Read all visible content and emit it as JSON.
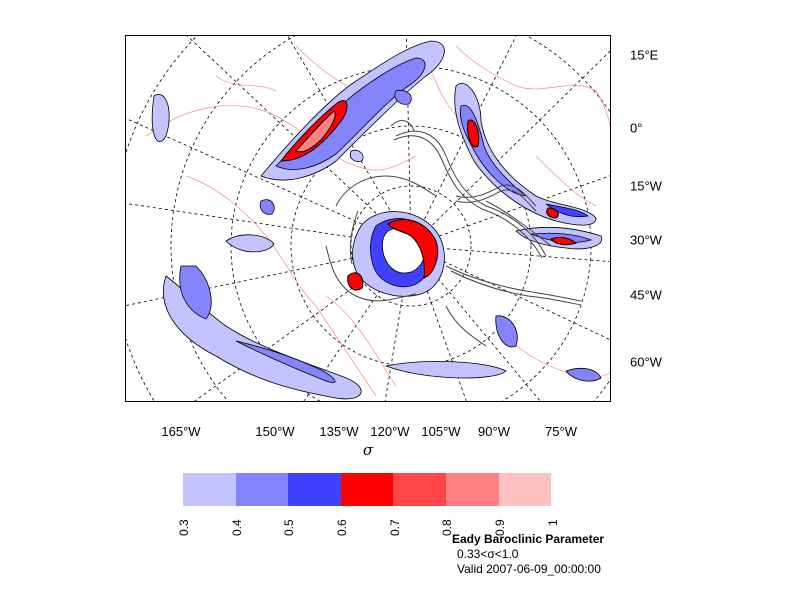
{
  "map": {
    "y_labels": [
      "15°E",
      "0°",
      "15°W",
      "30°W",
      "45°W",
      "60°W"
    ],
    "x_labels": [
      "165°W",
      "150°W",
      "135°W",
      "120°W",
      "105°W",
      "90°W",
      "75°W"
    ],
    "x_axis_label": "σ"
  },
  "colorbar": {
    "colors": [
      "#c3c3ff",
      "#8484ff",
      "#4040ff",
      "#ff0000",
      "#ff4545",
      "#ff8080",
      "#ffc0c0"
    ],
    "labels": [
      "0.3",
      "0.4",
      "0.5",
      "0.6",
      "0.7",
      "0.8",
      "0.9",
      "1"
    ]
  },
  "caption": {
    "title": "Eady Baroclinic Parameter",
    "range_text": "0.33<σ<1.0",
    "valid_text": "Valid 2007-06-09_00:00:00"
  },
  "colors": {
    "low": "#c3c3ff",
    "mid": "#8484ff",
    "high": "#4040ff",
    "red1": "#ff0000",
    "red2": "#ff4545",
    "red3": "#ff8080",
    "coast": "#f08080",
    "terrain": "#444444"
  }
}
